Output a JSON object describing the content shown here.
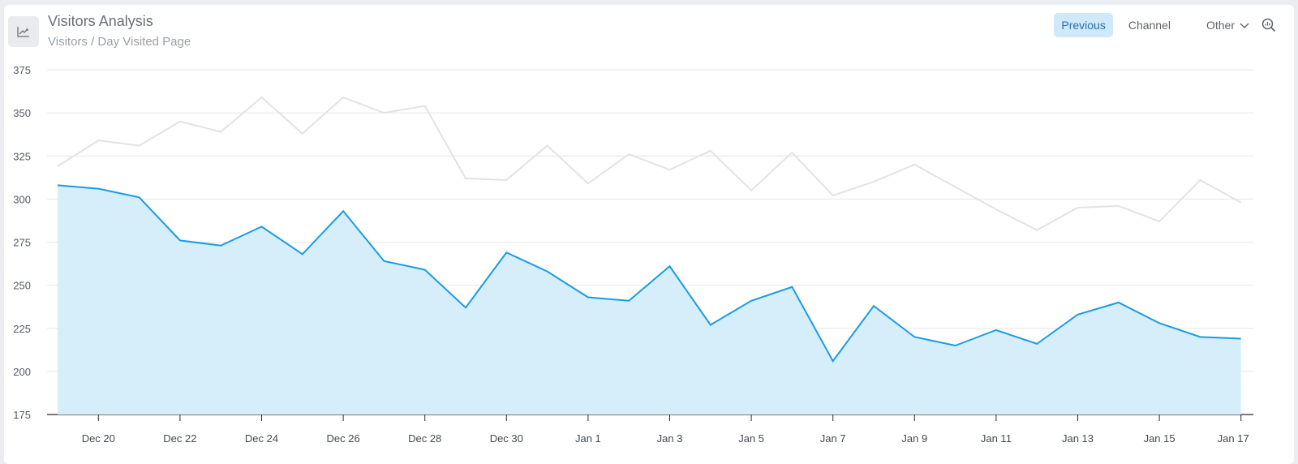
{
  "header": {
    "title": "Visitors Analysis",
    "subtitle": "Visitors / Day Visited Page",
    "icon": "line-chart-icon"
  },
  "toolbar": {
    "previous_label": "Previous",
    "channel_label": "Channel",
    "other_label": "Other",
    "other_icon": "chevron-down-icon",
    "zoom_icon": "zoom-icon"
  },
  "colors": {
    "current_line": "#1a9be6",
    "current_fill": "#d6eefa",
    "previous_line": "#e3e3e3",
    "grid": "#e6e6e6",
    "active_button_bg": "#cfe9fb"
  },
  "chart_data": {
    "type": "area",
    "x": [
      "Dec 19",
      "Dec 20",
      "Dec 21",
      "Dec 22",
      "Dec 23",
      "Dec 24",
      "Dec 25",
      "Dec 26",
      "Dec 27",
      "Dec 28",
      "Dec 29",
      "Dec 30",
      "Dec 31",
      "Jan 1",
      "Jan 2",
      "Jan 3",
      "Jan 4",
      "Jan 5",
      "Jan 6",
      "Jan 7",
      "Jan 8",
      "Jan 9",
      "Jan 10",
      "Jan 11",
      "Jan 12",
      "Jan 13",
      "Jan 14",
      "Jan 15",
      "Jan 16",
      "Jan 17"
    ],
    "x_tick_labels": [
      "Dec 20",
      "Dec 22",
      "Dec 24",
      "Dec 26",
      "Dec 28",
      "Dec 30",
      "Jan 1",
      "Jan 3",
      "Jan 5",
      "Jan 7",
      "Jan 9",
      "Jan 11",
      "Jan 13",
      "Jan 15",
      "Jan 17"
    ],
    "series": [
      {
        "values": [
          319,
          334,
          331,
          345,
          339,
          359,
          338,
          359,
          350,
          354,
          312,
          311,
          331,
          309,
          326,
          317,
          328,
          305,
          327,
          302,
          310,
          320,
          307,
          294,
          282,
          295,
          296,
          287,
          311,
          298
        ]
      },
      {
        "values": [
          308,
          306,
          301,
          276,
          273,
          284,
          268,
          293,
          264,
          259,
          237,
          269,
          258,
          243,
          241,
          261,
          227,
          241,
          249,
          206,
          238,
          220,
          215,
          224,
          216,
          233,
          240,
          228,
          220,
          219
        ]
      }
    ],
    "ylim": [
      175,
      375
    ],
    "y_ticks": [
      175,
      200,
      225,
      250,
      275,
      300,
      325,
      350,
      375
    ],
    "grid": true,
    "legend": "none"
  }
}
